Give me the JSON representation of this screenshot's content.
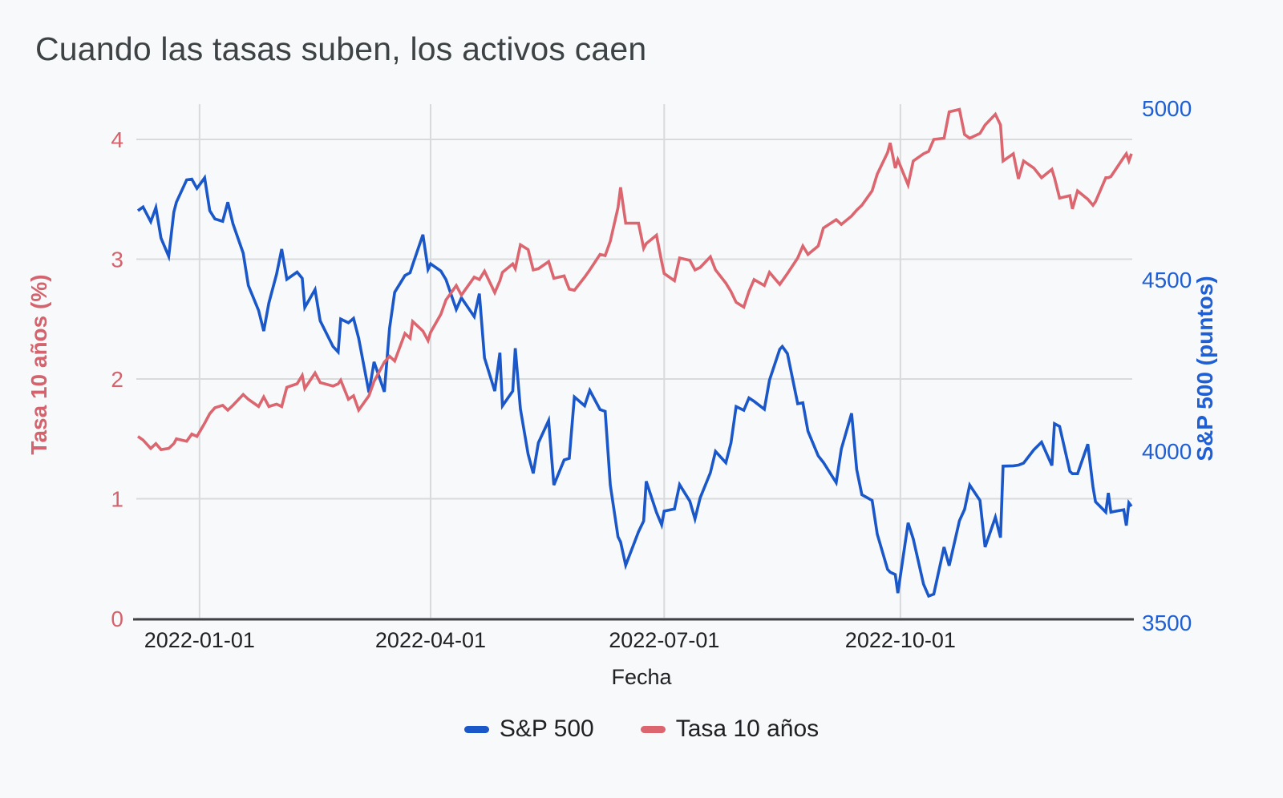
{
  "title": "Cuando las tasas suben, los activos caen",
  "x_axis": {
    "title": "Fecha",
    "tick_labels": [
      "2022-01-01",
      "2022-04-01",
      "2022-07-01",
      "2022-10-01"
    ]
  },
  "left_axis": {
    "title": "Tasa 10 años (%)",
    "tick_labels": [
      "0",
      "1",
      "2",
      "3",
      "4"
    ],
    "tick_values": [
      0,
      1,
      2,
      3,
      4
    ],
    "color": "#d5636d"
  },
  "right_axis": {
    "title": "S&P 500 (puntos)",
    "tick_labels": [
      "3500",
      "4000",
      "4500",
      "5000"
    ],
    "tick_values": [
      3500,
      4000,
      4500,
      5000
    ],
    "color": "#1e5fd6"
  },
  "legend": [
    {
      "label": "S&P 500",
      "color": "#1a57c9"
    },
    {
      "label": "Tasa 10 años",
      "color": "#db666f"
    }
  ],
  "colors": {
    "background": "#f8f9fa",
    "title_text": "#3d4245",
    "gridline": "#d9dadc",
    "axis_line": "#3f4347",
    "sp500_line": "#1a57c9",
    "rate_line": "#db666f"
  },
  "chart_data": {
    "type": "line",
    "title": "Cuando las tasas suben, los activos caen",
    "xlabel": "Fecha",
    "ylabel_left": "Tasa 10 años (%)",
    "ylabel_right": "S&P 500 (puntos)",
    "grid": true,
    "legend_position": "bottom",
    "left_ylim": [
      0,
      4.294
    ],
    "right_ylim": [
      3500,
      5000
    ],
    "x_tick_dates": [
      "2022-01-01",
      "2022-04-01",
      "2022-07-01",
      "2022-10-01"
    ],
    "x": [
      "2021-12-08",
      "2021-12-10",
      "2021-12-13",
      "2021-12-15",
      "2021-12-17",
      "2021-12-20",
      "2021-12-22",
      "2021-12-23",
      "2021-12-27",
      "2021-12-29",
      "2021-12-31",
      "2022-01-03",
      "2022-01-05",
      "2022-01-07",
      "2022-01-10",
      "2022-01-12",
      "2022-01-14",
      "2022-01-18",
      "2022-01-20",
      "2022-01-24",
      "2022-01-26",
      "2022-01-28",
      "2022-01-31",
      "2022-02-02",
      "2022-02-04",
      "2022-02-08",
      "2022-02-10",
      "2022-02-11",
      "2022-02-15",
      "2022-02-17",
      "2022-02-22",
      "2022-02-24",
      "2022-02-25",
      "2022-02-28",
      "2022-03-02",
      "2022-03-04",
      "2022-03-08",
      "2022-03-10",
      "2022-03-14",
      "2022-03-16",
      "2022-03-18",
      "2022-03-22",
      "2022-03-24",
      "2022-03-25",
      "2022-03-29",
      "2022-03-31",
      "2022-04-01",
      "2022-04-05",
      "2022-04-07",
      "2022-04-11",
      "2022-04-13",
      "2022-04-18",
      "2022-04-20",
      "2022-04-22",
      "2022-04-26",
      "2022-04-28",
      "2022-04-29",
      "2022-05-03",
      "2022-05-04",
      "2022-05-06",
      "2022-05-09",
      "2022-05-11",
      "2022-05-13",
      "2022-05-17",
      "2022-05-19",
      "2022-05-23",
      "2022-05-25",
      "2022-05-27",
      "2022-05-31",
      "2022-06-02",
      "2022-06-06",
      "2022-06-08",
      "2022-06-10",
      "2022-06-13",
      "2022-06-14",
      "2022-06-16",
      "2022-06-21",
      "2022-06-23",
      "2022-06-24",
      "2022-06-28",
      "2022-06-30",
      "2022-07-01",
      "2022-07-05",
      "2022-07-07",
      "2022-07-11",
      "2022-07-13",
      "2022-07-15",
      "2022-07-19",
      "2022-07-21",
      "2022-07-25",
      "2022-07-27",
      "2022-07-29",
      "2022-08-01",
      "2022-08-03",
      "2022-08-05",
      "2022-08-09",
      "2022-08-11",
      "2022-08-15",
      "2022-08-16",
      "2022-08-18",
      "2022-08-22",
      "2022-08-24",
      "2022-08-26",
      "2022-08-30",
      "2022-09-01",
      "2022-09-06",
      "2022-09-08",
      "2022-09-12",
      "2022-09-14",
      "2022-09-16",
      "2022-09-20",
      "2022-09-22",
      "2022-09-26",
      "2022-09-27",
      "2022-09-29",
      "2022-09-30",
      "2022-10-04",
      "2022-10-06",
      "2022-10-10",
      "2022-10-12",
      "2022-10-14",
      "2022-10-18",
      "2022-10-20",
      "2022-10-24",
      "2022-10-26",
      "2022-10-28",
      "2022-11-01",
      "2022-11-03",
      "2022-11-07",
      "2022-11-09",
      "2022-11-10",
      "2022-11-14",
      "2022-11-16",
      "2022-11-18",
      "2022-11-22",
      "2022-11-25",
      "2022-11-29",
      "2022-11-30",
      "2022-12-02",
      "2022-12-06",
      "2022-12-07",
      "2022-12-09",
      "2022-12-13",
      "2022-12-15",
      "2022-12-16",
      "2022-12-20",
      "2022-12-21",
      "2022-12-22",
      "2022-12-27",
      "2022-12-28",
      "2022-12-29",
      "2022-12-30"
    ],
    "series": [
      {
        "name": "S&P 500",
        "axis": "right",
        "color": "#1a57c9",
        "values": [
          4701,
          4712,
          4669,
          4710,
          4621,
          4568,
          4697,
          4726,
          4791,
          4793,
          4766,
          4797,
          4701,
          4677,
          4670,
          4726,
          4663,
          4577,
          4483,
          4410,
          4350,
          4432,
          4516,
          4589,
          4501,
          4522,
          4504,
          4419,
          4471,
          4380,
          4305,
          4289,
          4385,
          4374,
          4387,
          4329,
          4171,
          4260,
          4173,
          4358,
          4463,
          4512,
          4520,
          4543,
          4631,
          4530,
          4546,
          4525,
          4500,
          4413,
          4447,
          4392,
          4459,
          4272,
          4175,
          4287,
          4132,
          4175,
          4300,
          4123,
          3991,
          3935,
          4024,
          4089,
          3901,
          3974,
          3979,
          4158,
          4132,
          4177,
          4121,
          4116,
          3901,
          3750,
          3735,
          3667,
          3765,
          3796,
          3912,
          3821,
          3785,
          3825,
          3831,
          3902,
          3854,
          3802,
          3863,
          3937,
          3999,
          3966,
          4024,
          4130,
          4119,
          4155,
          4145,
          4122,
          4207,
          4297,
          4305,
          4284,
          4138,
          4141,
          4058,
          3986,
          3967,
          3908,
          4006,
          4110,
          3946,
          3873,
          3856,
          3758,
          3655,
          3647,
          3640,
          3586,
          3791,
          3744,
          3612,
          3577,
          3583,
          3720,
          3666,
          3797,
          3830,
          3901,
          3856,
          3720,
          3807,
          3748,
          3956,
          3957,
          3959,
          3965,
          4004,
          4026,
          3958,
          4080,
          4072,
          3941,
          3934,
          3934,
          4020,
          3896,
          3852,
          3822,
          3878,
          3822,
          3829,
          3783,
          3849,
          3839
        ]
      },
      {
        "name": "Tasa 10 años",
        "axis": "left",
        "color": "#db666f",
        "values": [
          1.52,
          1.49,
          1.42,
          1.46,
          1.41,
          1.42,
          1.46,
          1.5,
          1.48,
          1.54,
          1.52,
          1.63,
          1.71,
          1.76,
          1.78,
          1.74,
          1.78,
          1.87,
          1.83,
          1.77,
          1.85,
          1.77,
          1.79,
          1.77,
          1.93,
          1.96,
          2.03,
          1.92,
          2.05,
          1.97,
          1.94,
          1.96,
          1.99,
          1.83,
          1.86,
          1.74,
          1.86,
          1.98,
          2.14,
          2.19,
          2.15,
          2.38,
          2.34,
          2.48,
          2.4,
          2.32,
          2.39,
          2.54,
          2.66,
          2.78,
          2.7,
          2.85,
          2.83,
          2.9,
          2.72,
          2.82,
          2.89,
          2.96,
          2.92,
          3.12,
          3.08,
          2.91,
          2.92,
          2.98,
          2.84,
          2.86,
          2.75,
          2.74,
          2.85,
          2.91,
          3.04,
          3.03,
          3.15,
          3.43,
          3.6,
          3.3,
          3.3,
          3.09,
          3.13,
          3.2,
          2.98,
          2.88,
          2.82,
          3.01,
          2.99,
          2.91,
          2.93,
          3.02,
          2.91,
          2.8,
          2.73,
          2.64,
          2.6,
          2.73,
          2.83,
          2.78,
          2.89,
          2.79,
          2.82,
          2.88,
          3.01,
          3.11,
          3.04,
          3.11,
          3.26,
          3.33,
          3.29,
          3.36,
          3.41,
          3.45,
          3.57,
          3.71,
          3.89,
          3.97,
          3.76,
          3.83,
          3.62,
          3.82,
          3.88,
          3.9,
          4.0,
          4.01,
          4.23,
          4.25,
          4.04,
          4.01,
          4.05,
          4.12,
          4.21,
          4.12,
          3.82,
          3.88,
          3.67,
          3.82,
          3.76,
          3.68,
          3.75,
          3.68,
          3.51,
          3.53,
          3.42,
          3.57,
          3.5,
          3.45,
          3.48,
          3.68,
          3.68,
          3.69,
          3.85,
          3.88,
          3.82,
          3.88
        ]
      }
    ]
  }
}
